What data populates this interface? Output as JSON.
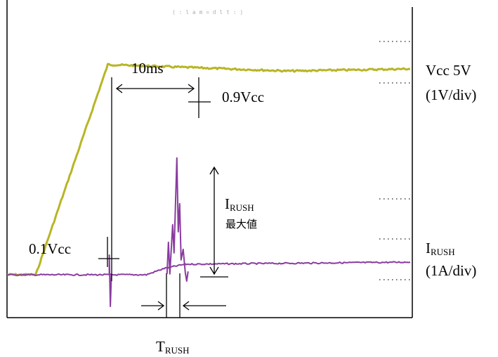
{
  "chart_data": {
    "type": "line",
    "title": "",
    "header_readout": "( : l a m = d l t : )",
    "series": [
      {
        "name": "Vcc 5V",
        "scale": "(1V/div)",
        "color": "#b8b526",
        "description_points": [
          [
            0,
            0.1
          ],
          [
            0.97,
            0.1
          ],
          [
            3.4,
            5.0
          ],
          [
            9.5,
            4.85
          ],
          [
            13.6,
            4.9
          ]
        ]
      },
      {
        "name": "IRUSH",
        "scale": "(1A/div)",
        "color": "#8a3c9f",
        "description_points": [
          [
            0,
            0.1
          ],
          [
            2.9,
            0.1
          ],
          [
            4.7,
            0.1
          ],
          [
            5.3,
            0.25
          ],
          [
            6.0,
            0.35
          ],
          [
            13.6,
            0.4
          ]
        ]
      }
    ],
    "annotations": {
      "time_interval": "10ms",
      "low_threshold": "0.1Vcc",
      "high_threshold": "0.9Vcc",
      "peak_label_main": "I",
      "peak_label_sub": "RUSH",
      "peak_label_jp": "最大値",
      "rush_time_main": "T",
      "rush_time_sub": "RUSH"
    },
    "right_labels": {
      "vcc_name": "Vcc 5V",
      "vcc_scale": "(1V/div)",
      "irush_main": "I",
      "irush_sub": "RUSH",
      "irush_scale": "(1A/div)"
    },
    "grid": false
  }
}
